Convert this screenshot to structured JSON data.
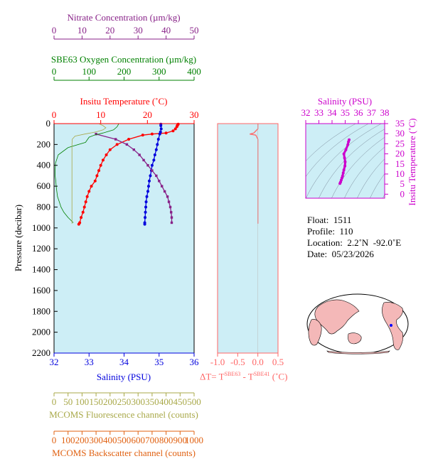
{
  "colors": {
    "plot_bg": "#cdeef6",
    "temperature": "#ff0000",
    "salinity": "#0000dd",
    "oxygen": "#008000",
    "nitrate": "#882288",
    "fluorescence": "#a8a848",
    "backscatter": "#e06010",
    "delta": "#ff6666",
    "ts": "#cc00cc",
    "land": "#f4b8b8",
    "ocean": "#ffffff"
  },
  "axes": {
    "nitrate": {
      "title": "Nitrate Concentration (µm/kg)",
      "ticks": [
        "0",
        "10",
        "20",
        "30",
        "40",
        "50"
      ],
      "range": [
        0,
        50
      ]
    },
    "oxygen": {
      "title": "SBE63 Oxygen Concentration (µm/kg)",
      "ticks": [
        "0",
        "100",
        "200",
        "300",
        "400"
      ],
      "range": [
        0,
        400
      ]
    },
    "temperature": {
      "title": "Insitu Temperature (˚C)",
      "ticks": [
        "0",
        "10",
        "20",
        "30"
      ],
      "range": [
        0,
        30
      ]
    },
    "salinity": {
      "title": "Salinity (PSU)",
      "ticks": [
        "32",
        "33",
        "34",
        "35",
        "36"
      ],
      "range": [
        32,
        36
      ]
    },
    "pressure": {
      "title": "Pressure (decibar)",
      "ticks": [
        "0",
        "200",
        "400",
        "600",
        "800",
        "1000",
        "1200",
        "1400",
        "1600",
        "1800",
        "2000",
        "2200"
      ],
      "range": [
        0,
        2200
      ]
    },
    "fluorescence": {
      "title": "MCOMS Fluorescence channel (counts)",
      "ticks": [
        "0",
        "50",
        "100",
        "150",
        "200",
        "250",
        "300",
        "350",
        "400",
        "450",
        "500"
      ],
      "range": [
        0,
        500
      ]
    },
    "backscatter": {
      "title": "MCOMS Backscatter channel (counts)",
      "ticks": [
        "0",
        "100",
        "200",
        "300",
        "400",
        "500",
        "600",
        "700",
        "800",
        "900",
        "1000"
      ],
      "range": [
        0,
        1000
      ]
    },
    "delta": {
      "ticks": [
        "-1.0",
        "-0.5",
        "0.0",
        "0.5"
      ],
      "range": [
        -1.0,
        0.5
      ]
    },
    "ts_salinity": {
      "title": "Salinity (PSU)",
      "ticks": [
        "32",
        "33",
        "34",
        "35",
        "36",
        "37",
        "38"
      ],
      "range": [
        32,
        38
      ]
    },
    "ts_temperature": {
      "title": "Insitu Temperature (˚C)",
      "ticks": [
        "0",
        "5",
        "10",
        "15",
        "20",
        "25",
        "30",
        "35"
      ],
      "range": [
        -2,
        35
      ]
    }
  },
  "delta_label": {
    "prefix": "ΔT= T",
    "sup1": "SBE63",
    "mid": " - T",
    "sup2": "SBE41",
    "suffix": " (˚C)"
  },
  "info": {
    "float_label": "Float:",
    "float": "1511",
    "profile_label": "Profile:",
    "profile": "110",
    "location_label": "Location:",
    "location": "2.2˚N  -92.0˚E",
    "date_label": "Date:",
    "date": "05/23/2026"
  },
  "chart_data": {
    "type": "line",
    "y_label": "Pressure (decibar)",
    "y_range": [
      0,
      2200
    ],
    "y_inverted": true,
    "series": [
      {
        "name": "Insitu Temperature (˚C)",
        "axis": "temperature",
        "pressure": [
          5,
          10,
          20,
          30,
          50,
          70,
          90,
          100,
          110,
          150,
          200,
          250,
          300,
          350,
          400,
          450,
          500,
          550,
          600,
          650,
          700,
          750,
          800,
          850,
          900,
          950,
          965
        ],
        "values": [
          26.6,
          26.5,
          26.4,
          26.3,
          26.0,
          25.5,
          24.0,
          21.0,
          19.0,
          16.0,
          13.5,
          12.0,
          11.2,
          10.5,
          10.0,
          9.6,
          9.2,
          8.8,
          8.0,
          7.5,
          7.1,
          6.8,
          6.5,
          6.2,
          5.8,
          5.5,
          5.3
        ]
      },
      {
        "name": "Salinity (PSU)",
        "axis": "salinity",
        "pressure": [
          5,
          20,
          50,
          80,
          100,
          150,
          200,
          250,
          300,
          350,
          400,
          450,
          500,
          550,
          600,
          650,
          700,
          750,
          800,
          850,
          900,
          950,
          965
        ],
        "values": [
          35.05,
          35.05,
          35.06,
          35.04,
          35.02,
          34.98,
          34.95,
          34.92,
          34.88,
          34.85,
          34.8,
          34.78,
          34.75,
          34.72,
          34.7,
          34.68,
          34.65,
          34.63,
          34.62,
          34.61,
          34.6,
          34.59,
          34.59
        ]
      },
      {
        "name": "Nitrate Concentration (µm/kg)",
        "axis": "nitrate",
        "pressure": [
          100,
          150,
          200,
          250,
          300,
          350,
          400,
          450,
          500,
          550,
          600,
          650,
          700,
          750,
          800,
          850,
          900,
          950
        ],
        "values": [
          15.0,
          22.0,
          26.0,
          28.5,
          30.5,
          32.0,
          33.5,
          35.0,
          36.5,
          37.5,
          38.5,
          39.5,
          40.5,
          41.0,
          41.5,
          41.8,
          42.0,
          42.0
        ]
      },
      {
        "name": "SBE63 Oxygen Concentration (µm/kg)",
        "axis": "oxygen",
        "pressure": [
          0,
          30,
          60,
          90,
          110,
          130,
          180,
          230,
          300,
          380,
          450,
          500,
          550,
          600,
          650,
          700,
          750,
          800,
          850,
          900,
          950
        ],
        "values": [
          185,
          180,
          170,
          140,
          115,
          100,
          90,
          40,
          12,
          4,
          3,
          3,
          5,
          6,
          8,
          10,
          15,
          20,
          28,
          40,
          55
        ]
      },
      {
        "name": "MCOMS Fluorescence channel (counts)",
        "axis": "fluorescence",
        "pressure": [
          0,
          20,
          40,
          60,
          80,
          100,
          120,
          150,
          200,
          300,
          400,
          500,
          600,
          700,
          800,
          900,
          960
        ],
        "values": [
          160,
          175,
          185,
          175,
          150,
          110,
          75,
          65,
          64,
          64,
          64,
          64,
          64,
          64,
          64,
          64,
          64
        ]
      },
      {
        "name": "ΔT",
        "axis": "delta",
        "pressure": [
          0,
          50,
          90,
          100,
          110,
          150,
          200,
          400,
          600,
          800,
          960
        ],
        "values": [
          0.0,
          0.0,
          -0.1,
          -0.2,
          -0.05,
          0.0,
          0.0,
          0.0,
          0.0,
          0.0,
          0.0
        ]
      }
    ],
    "ts_diagram": {
      "type": "scatter",
      "x_label": "Salinity (PSU)",
      "y_label": "Insitu Temperature (˚C)",
      "points": [
        [
          35.3,
          27.0
        ],
        [
          35.25,
          26.0
        ],
        [
          35.2,
          24.5
        ],
        [
          35.05,
          22.0
        ],
        [
          34.9,
          20.0
        ],
        [
          34.95,
          18.0
        ],
        [
          35.0,
          16.0
        ],
        [
          34.98,
          14.0
        ],
        [
          34.9,
          12.0
        ],
        [
          34.85,
          10.5
        ],
        [
          34.8,
          9.0
        ],
        [
          34.75,
          8.0
        ],
        [
          34.7,
          7.0
        ],
        [
          34.65,
          6.0
        ],
        [
          34.6,
          5.3
        ]
      ]
    },
    "map": {
      "marker_lat": 2.2,
      "marker_lon": -92.0
    }
  }
}
